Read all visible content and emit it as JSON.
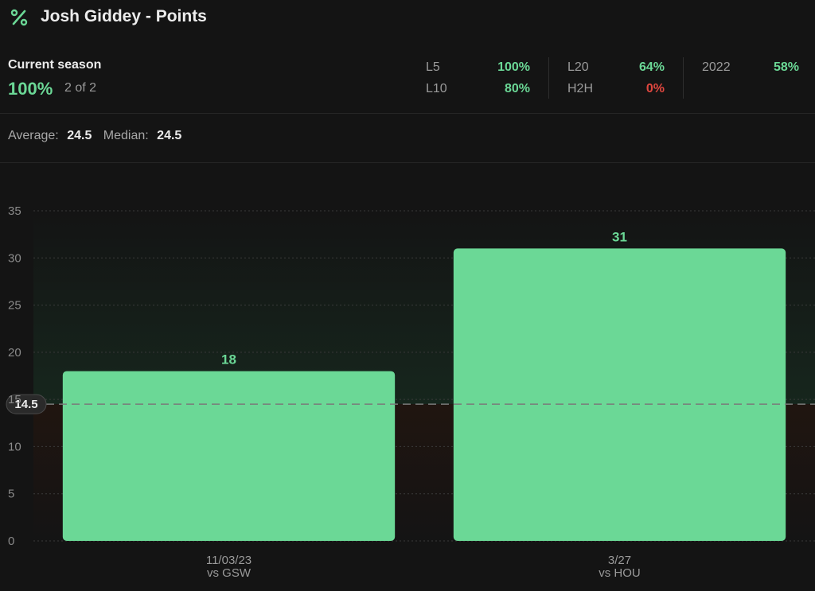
{
  "header": {
    "title": "Josh Giddey - Points",
    "icon": "percent-icon"
  },
  "season": {
    "label": "Current season",
    "percent": "100%",
    "count": "2 of 2"
  },
  "stats": [
    {
      "label": "L5",
      "value": "100%",
      "status": "positive"
    },
    {
      "label": "L10",
      "value": "80%",
      "status": "positive"
    },
    {
      "label": "L20",
      "value": "64%",
      "status": "positive"
    },
    {
      "label": "H2H",
      "value": "0%",
      "status": "negative"
    },
    {
      "label": "2022",
      "value": "58%",
      "status": "positive"
    }
  ],
  "summary": {
    "average_label": "Average:",
    "average_value": "24.5",
    "median_label": "Median:",
    "median_value": "24.5"
  },
  "colors": {
    "accent": "#6bd896",
    "negative": "#e0473f",
    "background": "#141414",
    "over_zone": "#16261d",
    "under_zone": "#1e1410"
  },
  "chart_data": {
    "type": "bar",
    "categories": [
      "11/03/23\nvs GSW",
      "3/27\nvs HOU"
    ],
    "category_lines": [
      [
        "11/03/23",
        "vs GSW"
      ],
      [
        "3/27",
        "vs HOU"
      ]
    ],
    "values": [
      18,
      31
    ],
    "data_labels": [
      "18",
      "31"
    ],
    "ylim": [
      0,
      35
    ],
    "yticks": [
      0,
      5,
      10,
      15,
      20,
      25,
      30,
      35
    ],
    "line": {
      "value": 14.5,
      "label": "14.5"
    },
    "grid": true,
    "legend": "none"
  }
}
